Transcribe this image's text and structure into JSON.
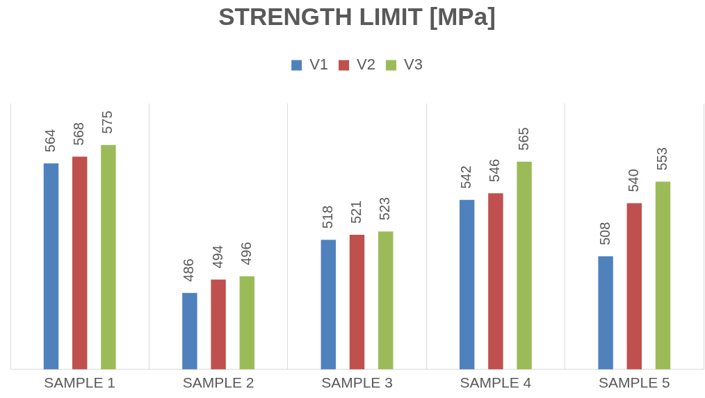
{
  "chart_data": {
    "type": "bar",
    "title": "STRENGTH LIMIT [MPa]",
    "categories": [
      "SAMPLE 1",
      "SAMPLE 2",
      "SAMPLE 3",
      "SAMPLE 4",
      "SAMPLE 5"
    ],
    "series": [
      {
        "name": "V1",
        "color": "#4f81bd",
        "values": [
          564,
          486,
          518,
          542,
          508
        ]
      },
      {
        "name": "V2",
        "color": "#c0504d",
        "values": [
          568,
          494,
          521,
          546,
          540
        ]
      },
      {
        "name": "V3",
        "color": "#9bbb59",
        "values": [
          575,
          496,
          523,
          565,
          553
        ]
      }
    ],
    "ylim": [
      440,
      600
    ],
    "data_labels": true,
    "grid": "x",
    "legend": "top",
    "tick_labels": "x"
  }
}
